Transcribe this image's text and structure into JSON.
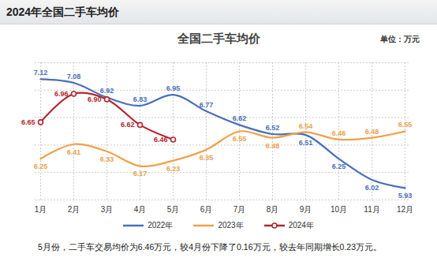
{
  "page_title": "2024年全国二手车均价",
  "chart_data": {
    "type": "line",
    "title": "全国二手车均价",
    "unit_label": "单位：万元",
    "caption": "5月份，二手车交易均价为6.46万元，较4月份下降了0.16万元，较去年同期增长0.23万元。",
    "categories": [
      "1月",
      "2月",
      "3月",
      "4月",
      "5月",
      "6月",
      "7月",
      "8月",
      "9月",
      "10月",
      "11月",
      "12月"
    ],
    "series": [
      {
        "name": "2022年",
        "color": "#4a6fb8",
        "values": [
          7.12,
          7.08,
          6.92,
          6.83,
          6.95,
          6.77,
          6.62,
          6.52,
          6.51,
          6.25,
          6.02,
          5.93
        ]
      },
      {
        "name": "2023年",
        "color": "#f0a04b",
        "values": [
          6.25,
          6.41,
          6.33,
          6.17,
          6.23,
          6.35,
          6.55,
          6.48,
          6.54,
          6.46,
          6.48,
          6.55
        ]
      },
      {
        "name": "2024年",
        "color": "#b3262e",
        "marker": "circle",
        "values": [
          6.65,
          6.96,
          6.9,
          6.62,
          6.46,
          null,
          null,
          null,
          null,
          null,
          null,
          null
        ],
        "value_labels": [
          "6.65",
          "6.96",
          "6.90",
          "6.62",
          "6.46",
          null,
          null,
          null,
          null,
          null,
          null,
          null
        ]
      }
    ],
    "ylim": [
      5.8,
      7.3
    ],
    "yticks": [
      5.8,
      6.1,
      6.4,
      6.7,
      7,
      7.3
    ],
    "grid": true,
    "tick_labels": "x",
    "data_labels": true,
    "legend": "bottom"
  }
}
